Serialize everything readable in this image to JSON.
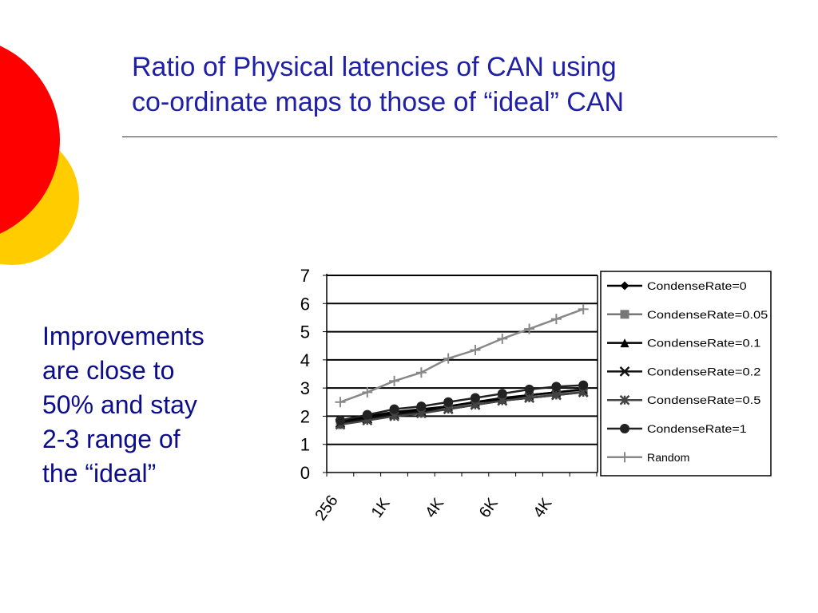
{
  "slide": {
    "title_lines": [
      "Ratio of Physical latencies of CAN using",
      "co-ordinate maps to those of “ideal” CAN"
    ],
    "body_lines": [
      "Improvements",
      "are close to",
      "50% and stay",
      "2-3 range of",
      "the “ideal”"
    ],
    "colors": {
      "title": "#1f1fa8",
      "body": "#0d0d8c",
      "decor_red": "#ff0000",
      "decor_yellow": "#ffcc00"
    }
  },
  "chart_data": {
    "type": "line",
    "x_tick_labels": [
      "256",
      "1K",
      "4K",
      "6K",
      "4K"
    ],
    "num_points": 10,
    "ylim": [
      0,
      7
    ],
    "yticks": [
      0,
      1,
      2,
      3,
      4,
      5,
      6,
      7
    ],
    "grid": true,
    "legend_position": "right",
    "series": [
      {
        "name": "CondenseRate=0",
        "marker": "diamond",
        "color": "#000000",
        "values": [
          1.8,
          2.0,
          2.15,
          2.25,
          2.35,
          2.5,
          2.65,
          2.75,
          2.85,
          2.95
        ]
      },
      {
        "name": "CondenseRate=0.05",
        "marker": "square",
        "color": "#777777",
        "values": [
          1.7,
          1.9,
          2.05,
          2.15,
          2.3,
          2.45,
          2.6,
          2.7,
          2.8,
          2.9
        ]
      },
      {
        "name": "CondenseRate=0.1",
        "marker": "triangle",
        "color": "#000000",
        "values": [
          1.75,
          1.95,
          2.1,
          2.2,
          2.35,
          2.5,
          2.6,
          2.75,
          2.85,
          2.95
        ]
      },
      {
        "name": "CondenseRate=0.2",
        "marker": "x",
        "color": "#111111",
        "values": [
          1.75,
          1.9,
          2.05,
          2.15,
          2.25,
          2.4,
          2.55,
          2.65,
          2.75,
          2.85
        ]
      },
      {
        "name": "CondenseRate=0.5",
        "marker": "star",
        "color": "#444444",
        "values": [
          1.7,
          1.85,
          2.0,
          2.1,
          2.25,
          2.4,
          2.55,
          2.65,
          2.75,
          2.85
        ]
      },
      {
        "name": "CondenseRate=1",
        "marker": "circle",
        "color": "#222222",
        "values": [
          1.85,
          2.05,
          2.25,
          2.35,
          2.5,
          2.65,
          2.8,
          2.95,
          3.05,
          3.1
        ]
      },
      {
        "name": "Random",
        "marker": "plus",
        "color": "#888888",
        "values": [
          2.5,
          2.85,
          3.25,
          3.55,
          4.05,
          4.35,
          4.75,
          5.1,
          5.45,
          5.8
        ]
      }
    ]
  }
}
